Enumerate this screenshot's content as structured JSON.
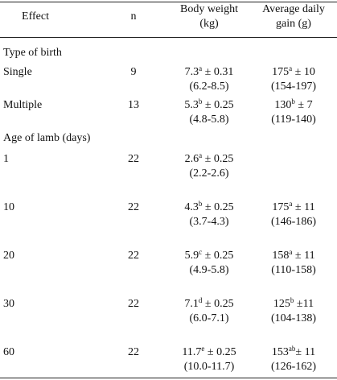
{
  "table": {
    "header": [
      {
        "lines": [
          "Effect"
        ]
      },
      {
        "lines": [
          "n"
        ]
      },
      {
        "lines": [
          "Body weight",
          "(kg)"
        ]
      },
      {
        "lines": [
          "Average daily",
          "gain (g)"
        ]
      }
    ],
    "rows": [
      {
        "section": "Type of birth"
      },
      {
        "effect": "Single",
        "n": "9",
        "bw": {
          "mean": "7.3",
          "sup": "a",
          "se": " ± 0.31",
          "range": "(6.2-8.5)"
        },
        "adg": {
          "mean": "175",
          "sup": "a",
          "se": " ± 10",
          "range": "(154-197)"
        }
      },
      {
        "effect": "Multiple",
        "n": "13",
        "bw": {
          "mean": "5.3",
          "sup": "b",
          "se": " ± 0.25",
          "range": "(4.8-5.8)"
        },
        "adg": {
          "mean": "130",
          "sup": "b",
          "se": " ± 7",
          "range": "(119-140)"
        }
      },
      {
        "section": "Age of lamb (days)"
      },
      {
        "effect": "1",
        "n": "22",
        "bw": {
          "mean": "2.6",
          "sup": "a",
          "se": " ± 0.25",
          "range": "(2.2-2.6)"
        }
      },
      {
        "effect": "10",
        "n": "22",
        "bw": {
          "mean": "4.3",
          "sup": "b",
          "se": " ± 0.25",
          "range": "(3.7-4.3)"
        },
        "adg": {
          "mean": "175",
          "sup": "a",
          "se": " ± 11",
          "range": "(146-186)"
        }
      },
      {
        "effect": "20",
        "n": "22",
        "bw": {
          "mean": "5.9",
          "sup": "c",
          "se": " ± 0.25",
          "range": "(4.9-5.8)"
        },
        "adg": {
          "mean": "158",
          "sup": "a",
          "se": " ± 11",
          "range": "(110-158)"
        }
      },
      {
        "effect": "30",
        "n": "22",
        "bw": {
          "mean": "7.1",
          "sup": "d",
          "se": " ± 0.25",
          "range": "(6.0-7.1)"
        },
        "adg": {
          "mean": "125",
          "sup": "b",
          "se": " ±11",
          "range": "(104-138)"
        }
      },
      {
        "effect": "60",
        "n": "22",
        "bw": {
          "mean": "11.7",
          "sup": "e",
          "se": " ± 0.25",
          "range": "(10.0-11.7)"
        },
        "adg": {
          "mean": "153",
          "sup": "ab",
          "se": "± 11",
          "range": "(126-162)"
        }
      }
    ]
  }
}
